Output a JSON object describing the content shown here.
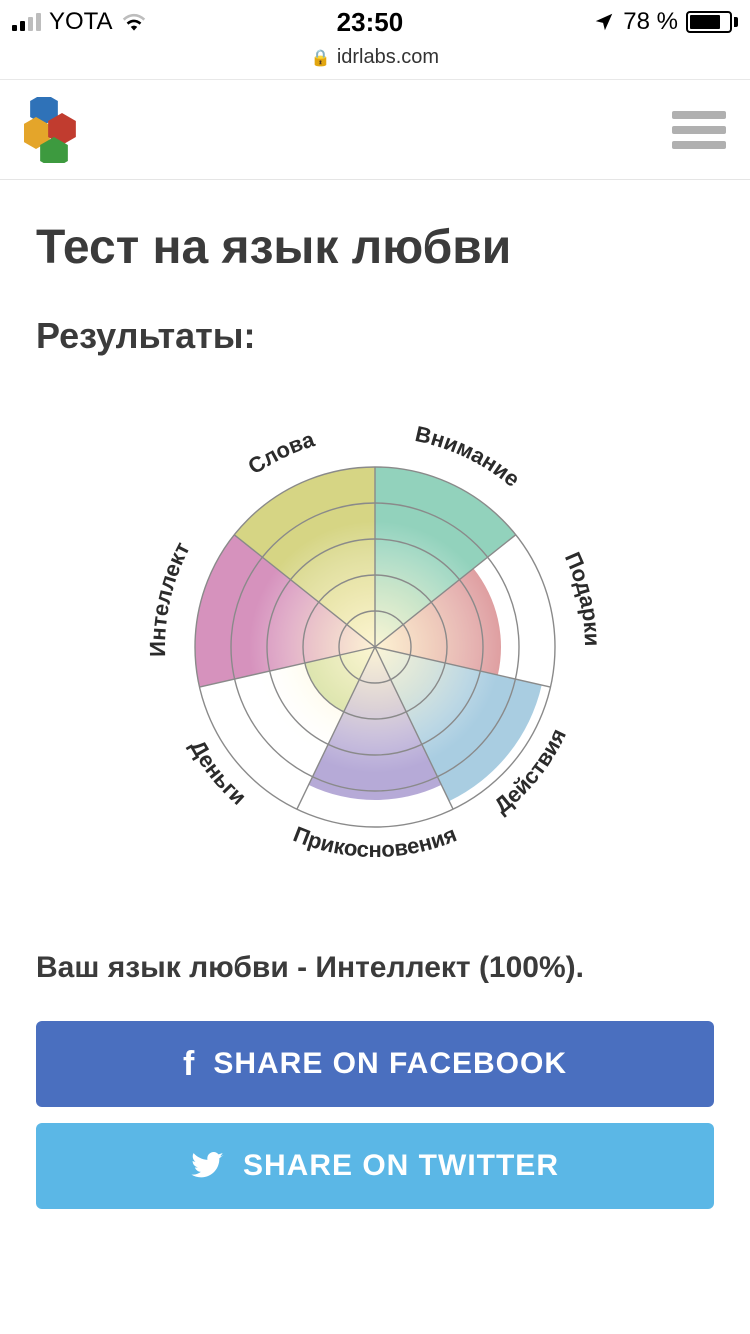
{
  "statusbar": {
    "carrier": "YOTA",
    "time": "23:50",
    "battery_pct": "78 %",
    "url": "idrlabs.com",
    "signal_bars_active": 2,
    "signal_bars_total": 4,
    "battery_fill_pct": 78
  },
  "page": {
    "title": "Тест на язык любви",
    "subtitle": "Результаты:",
    "result_text": "Ваш язык любви - Интеллект (100%)."
  },
  "share": {
    "facebook": "SHARE ON FACEBOOK",
    "twitter": "SHARE ON TWITTER",
    "fb_color": "#4a6fbf",
    "tw_color": "#5bb7e6"
  },
  "chart": {
    "type": "polar-pie",
    "rings": 5,
    "outer_radius": 180,
    "ring_color": "#8a8a8a",
    "ring_width": 1.4,
    "label_fontsize": 22,
    "label_fontweight": 700,
    "label_color": "#2b2b2b",
    "label_radius": 210,
    "inner_fade_color": "#fff7d6",
    "segments": [
      {
        "label": "Внимание",
        "value": 1.0,
        "fill": "#7fcab0",
        "start_deg": -90,
        "sweep_deg": 51.43
      },
      {
        "label": "Подарки",
        "value": 0.7,
        "fill": "#d98e90",
        "start_deg": -38.57,
        "sweep_deg": 51.43
      },
      {
        "label": "Действия",
        "value": 0.95,
        "fill": "#9ac4dc",
        "start_deg": 12.86,
        "sweep_deg": 51.43
      },
      {
        "label": "Прикосновения",
        "value": 0.85,
        "fill": "#a99bd0",
        "start_deg": 64.29,
        "sweep_deg": 51.43
      },
      {
        "label": "Деньги",
        "value": 0.4,
        "fill": "#b9d07a",
        "start_deg": 115.71,
        "sweep_deg": 51.43
      },
      {
        "label": "Интеллект",
        "value": 1.0,
        "fill": "#cf7fb1",
        "start_deg": 167.14,
        "sweep_deg": 51.43
      },
      {
        "label": "Слова",
        "value": 1.0,
        "fill": "#cfce6f",
        "start_deg": 218.57,
        "sweep_deg": 51.43
      }
    ]
  },
  "logo": {
    "hex_colors": [
      "#2f72b8",
      "#e4a52a",
      "#c13c2f",
      "#3d9a3f"
    ]
  }
}
